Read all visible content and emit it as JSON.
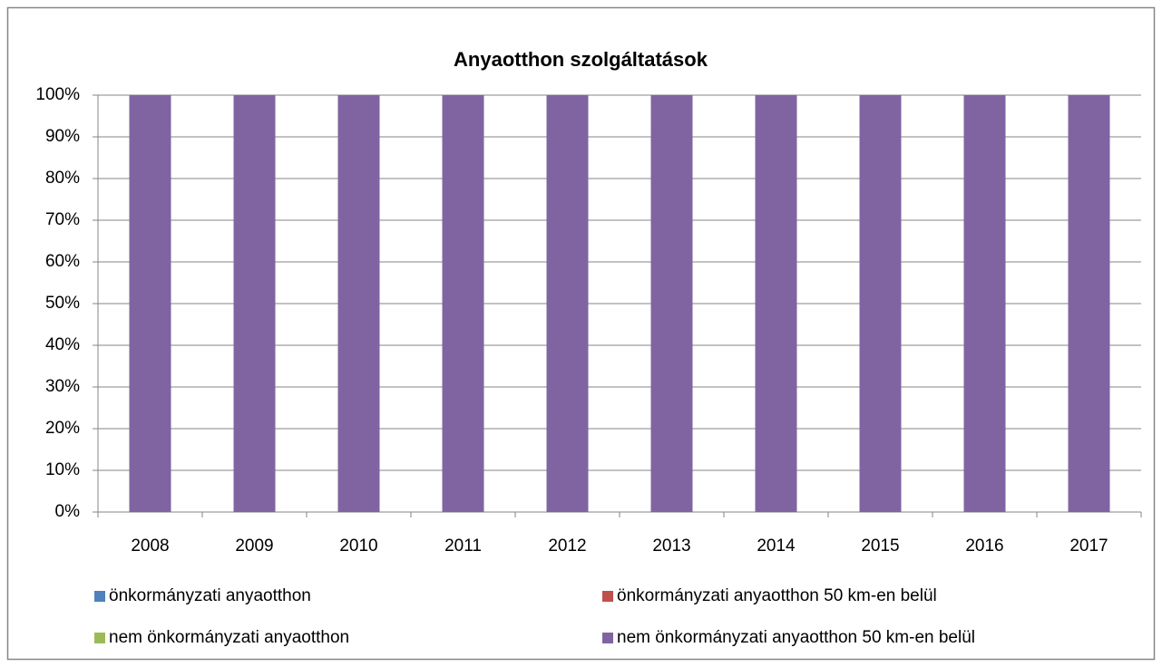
{
  "chart_data": {
    "type": "bar",
    "stacked": true,
    "title": "Anyaotthon szolgáltatások",
    "categories": [
      "2008",
      "2009",
      "2010",
      "2011",
      "2012",
      "2013",
      "2014",
      "2015",
      "2016",
      "2017"
    ],
    "series": [
      {
        "name": "önkormányzati anyaotthon",
        "color": "#4f81bd",
        "values": [
          0,
          0,
          0,
          0,
          0,
          0,
          0,
          0,
          0,
          0
        ]
      },
      {
        "name": "önkormányzati anyaotthon 50 km-en belül",
        "color": "#c0504d",
        "values": [
          0,
          0,
          0,
          0,
          0,
          0,
          0,
          0,
          0,
          0
        ]
      },
      {
        "name": "nem önkormányzati anyaotthon",
        "color": "#9bbb59",
        "values": [
          0,
          0,
          0,
          0,
          0,
          0,
          0,
          0,
          0,
          0
        ]
      },
      {
        "name": "nem önkormányzati anyaotthon 50 km-en belül",
        "color": "#8064a2",
        "values": [
          100,
          100,
          100,
          100,
          100,
          100,
          100,
          100,
          100,
          100
        ]
      }
    ],
    "ylim": [
      0,
      100
    ],
    "yticks": [
      {
        "value": 0,
        "label": "0%"
      },
      {
        "value": 10,
        "label": "10%"
      },
      {
        "value": 20,
        "label": "20%"
      },
      {
        "value": 30,
        "label": "30%"
      },
      {
        "value": 40,
        "label": "40%"
      },
      {
        "value": 50,
        "label": "50%"
      },
      {
        "value": 60,
        "label": "60%"
      },
      {
        "value": 70,
        "label": "70%"
      },
      {
        "value": 80,
        "label": "80%"
      },
      {
        "value": 90,
        "label": "90%"
      },
      {
        "value": 100,
        "label": "100%"
      }
    ],
    "grid": true,
    "legend": "bottom"
  }
}
